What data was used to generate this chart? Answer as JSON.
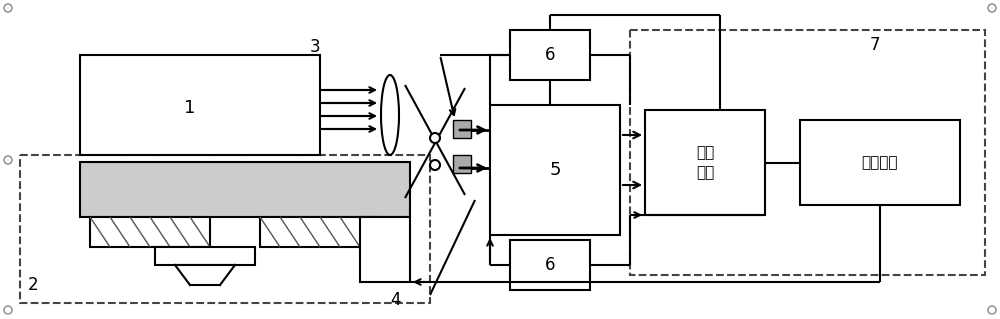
{
  "bg_color": "#ffffff",
  "line_color": "#000000",
  "dashed_color": "#555555",
  "gray_fill": "#d0d0d0",
  "light_gray": "#e8e8e8",
  "hatch_color": "#555555",
  "figsize": [
    10.0,
    3.19
  ],
  "dpi": 100,
  "labels": {
    "1": "1",
    "2": "2",
    "3": "3",
    "4": "4",
    "5": "5",
    "6a": "6",
    "6b": "6",
    "7": "7",
    "pulse": "脉冲\n计数",
    "motion": "运动控制"
  }
}
